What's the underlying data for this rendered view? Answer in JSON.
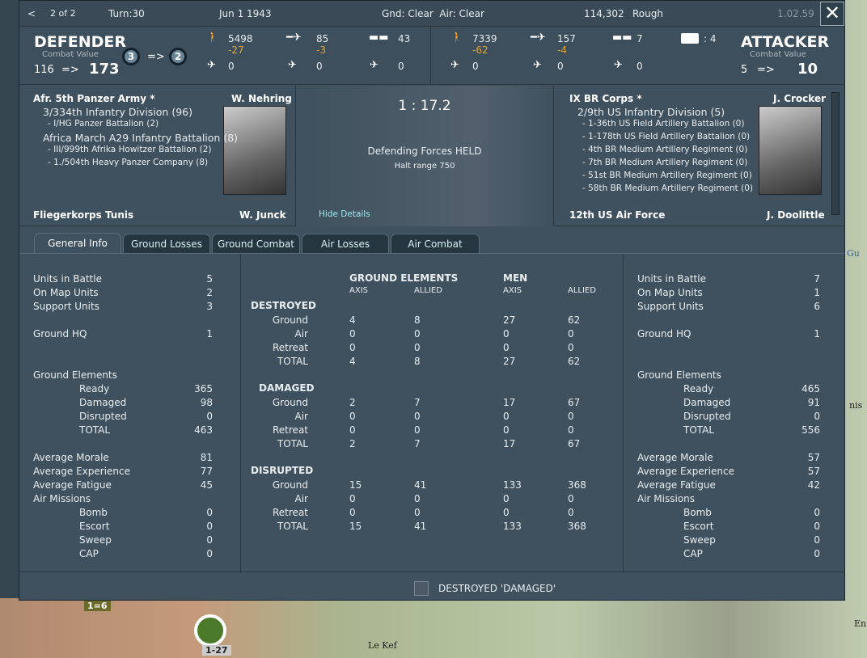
{
  "map": {
    "labels": [
      "Le Kef",
      "Gu",
      "nis",
      "En"
    ],
    "counters": [
      "1=6",
      "1-27"
    ]
  },
  "topbar": {
    "back": "<",
    "page": "2 of 2",
    "turn": "Turn:30",
    "date": "Jun 1 1943",
    "weather": "Gnd: Clear  Air: Clear",
    "location": "114,302",
    "terrain": "Rough",
    "version": "1.02.59",
    "close": "✕"
  },
  "defender": {
    "title": "DEFENDER",
    "cv_label": "Combat Value",
    "cv_from": "116",
    "arrow": "=>",
    "cv_to": "173",
    "badge_from": "3",
    "badge_to": "2",
    "men": "5498",
    "men_loss": "-27",
    "guns": "85",
    "guns_loss": "-3",
    "afv": "43",
    "fighters": "0",
    "bombers": "0",
    "transports": "0"
  },
  "attacker": {
    "title": "ATTACKER",
    "cv_label": "Combat Value",
    "cv_from": "5",
    "arrow": "=>",
    "cv_to": "10",
    "men": "7339",
    "men_loss": "-62",
    "guns": "157",
    "guns_loss": "-4",
    "afv": "7",
    "fighters": "0",
    "bombers": "0",
    "transports": "0",
    "flag_count": ": 4"
  },
  "details": {
    "ratio": "1 : 17.2",
    "result": "Defending Forces HELD",
    "halt": "Halt range 750",
    "hide": "Hide Details",
    "def_hq": "Afr. 5th Panzer Army *",
    "def_leader": "W. Nehring",
    "def_units": [
      {
        "name": "3/334th Infantry Division (96)",
        "lvl": 1
      },
      {
        "name": "- I/HG Panzer Battalion (2)",
        "lvl": 2
      },
      {
        "name": "Africa March A29 Infantry Battalion (8)",
        "lvl": 1
      },
      {
        "name": "- III/999th Afrika Howitzer Battalion (2)",
        "lvl": 2
      },
      {
        "name": "- 1./504th Heavy Panzer Company (8)",
        "lvl": 2
      }
    ],
    "def_air_hq": "Fliegerkorps Tunis",
    "def_air_leader": "W. Junck",
    "att_hq": "IX BR Corps *",
    "att_leader": "J. Crocker",
    "att_units": [
      {
        "name": "2/9th US Infantry Division (5)",
        "lvl": 1
      },
      {
        "name": "- 1-36th US Field Artillery Battalion (0)",
        "lvl": 2
      },
      {
        "name": "- 1-178th US Field Artillery Battalion (0)",
        "lvl": 2
      },
      {
        "name": "- 4th BR Medium Artillery Regiment (0)",
        "lvl": 2
      },
      {
        "name": "- 7th BR Medium Artillery Regiment (0)",
        "lvl": 2
      },
      {
        "name": "- 51st BR Medium Artillery Regiment (0)",
        "lvl": 2
      },
      {
        "name": "- 58th BR Medium Artillery Regiment (0)",
        "lvl": 2
      }
    ],
    "att_air_hq": "12th US Air Force",
    "att_air_leader": "J. Doolittle"
  },
  "tabs": [
    {
      "label": "General Info",
      "active": true
    },
    {
      "label": "Ground Losses"
    },
    {
      "label": "Ground Combat"
    },
    {
      "label": "Air Losses"
    },
    {
      "label": "Air Combat"
    }
  ],
  "left_info": [
    [
      "Units in Battle",
      "5",
      0
    ],
    [
      "On Map Units",
      "2",
      0
    ],
    [
      "Support Units",
      "3",
      0
    ],
    [
      "",
      "",
      0
    ],
    [
      "Ground HQ",
      "1",
      0
    ],
    [
      "",
      "",
      0
    ],
    [
      "",
      "",
      0
    ],
    [
      "Ground Elements",
      "",
      0
    ],
    [
      "Ready",
      "365",
      1
    ],
    [
      "Damaged",
      "98",
      1
    ],
    [
      "Disrupted",
      "0",
      1
    ],
    [
      "TOTAL",
      "463",
      1
    ],
    [
      "",
      "",
      0
    ],
    [
      "Average Morale",
      "81",
      0
    ],
    [
      "Average Experience",
      "77",
      0
    ],
    [
      "Average Fatigue",
      "45",
      0
    ],
    [
      "Air Missions",
      "",
      0
    ],
    [
      "Bomb",
      "0",
      1
    ],
    [
      "Escort",
      "0",
      1
    ],
    [
      "Sweep",
      "0",
      1
    ],
    [
      "CAP",
      "0",
      1
    ]
  ],
  "right_info": [
    [
      "Units in Battle",
      "7",
      0
    ],
    [
      "On Map Units",
      "1",
      0
    ],
    [
      "Support Units",
      "6",
      0
    ],
    [
      "",
      "",
      0
    ],
    [
      "Ground HQ",
      "1",
      0
    ],
    [
      "",
      "",
      0
    ],
    [
      "",
      "",
      0
    ],
    [
      "Ground Elements",
      "",
      0
    ],
    [
      "Ready",
      "465",
      1
    ],
    [
      "Damaged",
      "91",
      1
    ],
    [
      "Disrupted",
      "0",
      1
    ],
    [
      "TOTAL",
      "556",
      1
    ],
    [
      "",
      "",
      0
    ],
    [
      "Average Morale",
      "57",
      0
    ],
    [
      "Average Experience",
      "57",
      0
    ],
    [
      "Average Fatigue",
      "42",
      0
    ],
    [
      "Air Missions",
      "",
      0
    ],
    [
      "Bomb",
      "0",
      1
    ],
    [
      "Escort",
      "0",
      1
    ],
    [
      "Sweep",
      "0",
      1
    ],
    [
      "CAP",
      "0",
      1
    ]
  ],
  "losses": {
    "group1": "GROUND ELEMENTS",
    "group2": "MEN",
    "axis": "AXIS",
    "allied": "ALLIED",
    "sections": [
      {
        "title": "DESTROYED",
        "rows": [
          [
            "Ground",
            "4",
            "8",
            "27",
            "62"
          ],
          [
            "Air",
            "0",
            "0",
            "0",
            "0"
          ],
          [
            "Retreat",
            "0",
            "0",
            "0",
            "0"
          ],
          [
            "TOTAL",
            "4",
            "8",
            "27",
            "62"
          ]
        ]
      },
      {
        "title": "DAMAGED",
        "rows": [
          [
            "Ground",
            "2",
            "7",
            "17",
            "67"
          ],
          [
            "Air",
            "0",
            "0",
            "0",
            "0"
          ],
          [
            "Retreat",
            "0",
            "0",
            "0",
            "0"
          ],
          [
            "TOTAL",
            "2",
            "7",
            "17",
            "67"
          ]
        ]
      },
      {
        "title": "DISRUPTED",
        "rows": [
          [
            "Ground",
            "15",
            "41",
            "133",
            "368"
          ],
          [
            "Air",
            "0",
            "0",
            "0",
            "0"
          ],
          [
            "Retreat",
            "0",
            "0",
            "0",
            "0"
          ],
          [
            "TOTAL",
            "15",
            "41",
            "133",
            "368"
          ]
        ]
      }
    ]
  },
  "footer": {
    "checkbox_label": "DESTROYED 'DAMAGED'",
    "checked": false
  }
}
